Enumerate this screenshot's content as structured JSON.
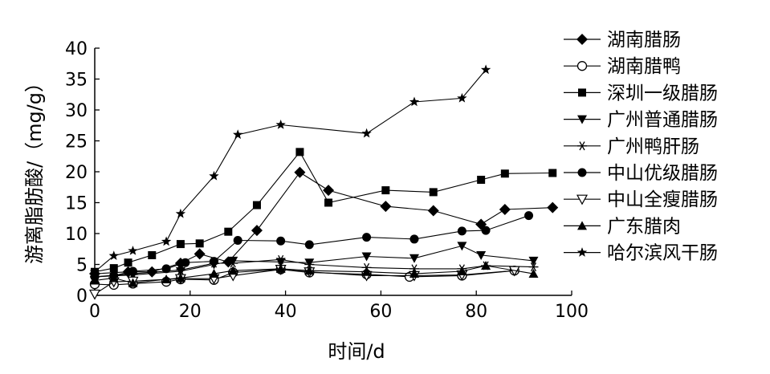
{
  "chart_data": {
    "type": "line",
    "title": "",
    "xlabel": "时间/d",
    "ylabel": "游离脂肪酸/（mg/g）",
    "xlim": [
      0,
      100
    ],
    "ylim": [
      0,
      40
    ],
    "xticks": [
      0,
      20,
      40,
      60,
      80,
      100
    ],
    "yticks": [
      0,
      5,
      10,
      15,
      20,
      25,
      30,
      35,
      40
    ],
    "grid": false,
    "legend_position": "right",
    "series": [
      {
        "name": "湖南腊肠",
        "marker": "diamond",
        "points": [
          [
            0,
            3.5
          ],
          [
            7,
            3.8
          ],
          [
            12,
            3.8
          ],
          [
            18,
            5.2
          ],
          [
            22,
            6.7
          ],
          [
            28,
            5.4
          ],
          [
            34,
            10.5
          ],
          [
            43,
            19.9
          ],
          [
            49,
            17.0
          ],
          [
            61,
            14.4
          ],
          [
            71,
            13.7
          ],
          [
            81,
            11.5
          ],
          [
            86,
            13.9
          ],
          [
            96,
            14.2
          ]
        ]
      },
      {
        "name": "湖南腊鸭",
        "marker": "circle-open",
        "points": [
          [
            0,
            1.8
          ],
          [
            4,
            1.7
          ],
          [
            8,
            1.9
          ],
          [
            15,
            2.2
          ],
          [
            18,
            2.6
          ],
          [
            25,
            2.5
          ],
          [
            29,
            3.7
          ],
          [
            39,
            4.2
          ],
          [
            45,
            3.7
          ],
          [
            57,
            3.4
          ],
          [
            66,
            3.0
          ],
          [
            77,
            3.2
          ],
          [
            88,
            4.0
          ]
        ]
      },
      {
        "name": "深圳一级腊肠",
        "marker": "square",
        "points": [
          [
            0,
            3.8
          ],
          [
            4,
            4.4
          ],
          [
            7,
            5.3
          ],
          [
            12,
            6.5
          ],
          [
            18,
            8.3
          ],
          [
            22,
            8.4
          ],
          [
            28,
            10.3
          ],
          [
            34,
            14.6
          ],
          [
            43,
            23.2
          ],
          [
            49,
            15.0
          ],
          [
            61,
            17.0
          ],
          [
            71,
            16.7
          ],
          [
            81,
            18.7
          ],
          [
            86,
            19.7
          ],
          [
            96,
            19.8
          ]
        ]
      },
      {
        "name": "广州普通腊肠",
        "marker": "triangle-down",
        "points": [
          [
            0,
            3.0
          ],
          [
            8,
            3.3
          ],
          [
            18,
            3.9
          ],
          [
            25,
            5.0
          ],
          [
            29,
            5.6
          ],
          [
            39,
            5.4
          ],
          [
            45,
            5.3
          ],
          [
            57,
            6.3
          ],
          [
            67,
            6.0
          ],
          [
            77,
            8.0
          ],
          [
            81,
            6.5
          ],
          [
            92,
            5.6
          ]
        ]
      },
      {
        "name": "广州鸭肝肠",
        "marker": "asterisk",
        "points": [
          [
            0,
            3.0
          ],
          [
            8,
            3.5
          ],
          [
            18,
            4.1
          ],
          [
            25,
            5.2
          ],
          [
            29,
            5.2
          ],
          [
            39,
            5.8
          ],
          [
            45,
            5.0
          ],
          [
            57,
            4.5
          ],
          [
            67,
            4.3
          ],
          [
            77,
            4.3
          ],
          [
            82,
            4.8
          ],
          [
            92,
            4.6
          ]
        ]
      },
      {
        "name": "中山优级腊肠",
        "marker": "circle",
        "points": [
          [
            0,
            3.0
          ],
          [
            4,
            3.2
          ],
          [
            8,
            3.9
          ],
          [
            15,
            4.3
          ],
          [
            19,
            5.3
          ],
          [
            25,
            5.5
          ],
          [
            30,
            8.9
          ],
          [
            39,
            8.8
          ],
          [
            45,
            8.2
          ],
          [
            57,
            9.4
          ],
          [
            67,
            9.1
          ],
          [
            77,
            10.4
          ],
          [
            82,
            10.5
          ],
          [
            91,
            12.9
          ]
        ]
      },
      {
        "name": "中山全瘦腊肠",
        "marker": "triangle-down-open",
        "points": [
          [
            0,
            0.2
          ],
          [
            4,
            2.2
          ],
          [
            8,
            2.3
          ],
          [
            18,
            2.7
          ],
          [
            25,
            2.7
          ],
          [
            29,
            3.2
          ],
          [
            39,
            4.2
          ],
          [
            45,
            3.8
          ],
          [
            57,
            3.2
          ],
          [
            67,
            3.2
          ],
          [
            77,
            3.3
          ],
          [
            88,
            4.0
          ]
        ]
      },
      {
        "name": "广东腊肉",
        "marker": "triangle-up",
        "points": [
          [
            0,
            2.4
          ],
          [
            4,
            2.8
          ],
          [
            8,
            2.0
          ],
          [
            15,
            2.6
          ],
          [
            18,
            2.8
          ],
          [
            25,
            3.5
          ],
          [
            29,
            4.0
          ],
          [
            39,
            4.3
          ],
          [
            45,
            4.0
          ],
          [
            57,
            3.8
          ],
          [
            67,
            3.5
          ],
          [
            77,
            3.9
          ],
          [
            82,
            4.8
          ],
          [
            92,
            3.5
          ]
        ]
      },
      {
        "name": "哈尔滨风干肠",
        "marker": "star",
        "points": [
          [
            0,
            3.8
          ],
          [
            4,
            6.4
          ],
          [
            8,
            7.2
          ],
          [
            15,
            8.7
          ],
          [
            18,
            13.2
          ],
          [
            25,
            19.3
          ],
          [
            30,
            26.0
          ],
          [
            39,
            27.6
          ],
          [
            57,
            26.2
          ],
          [
            67,
            31.3
          ],
          [
            77,
            31.9
          ],
          [
            82,
            36.5
          ]
        ]
      }
    ]
  }
}
